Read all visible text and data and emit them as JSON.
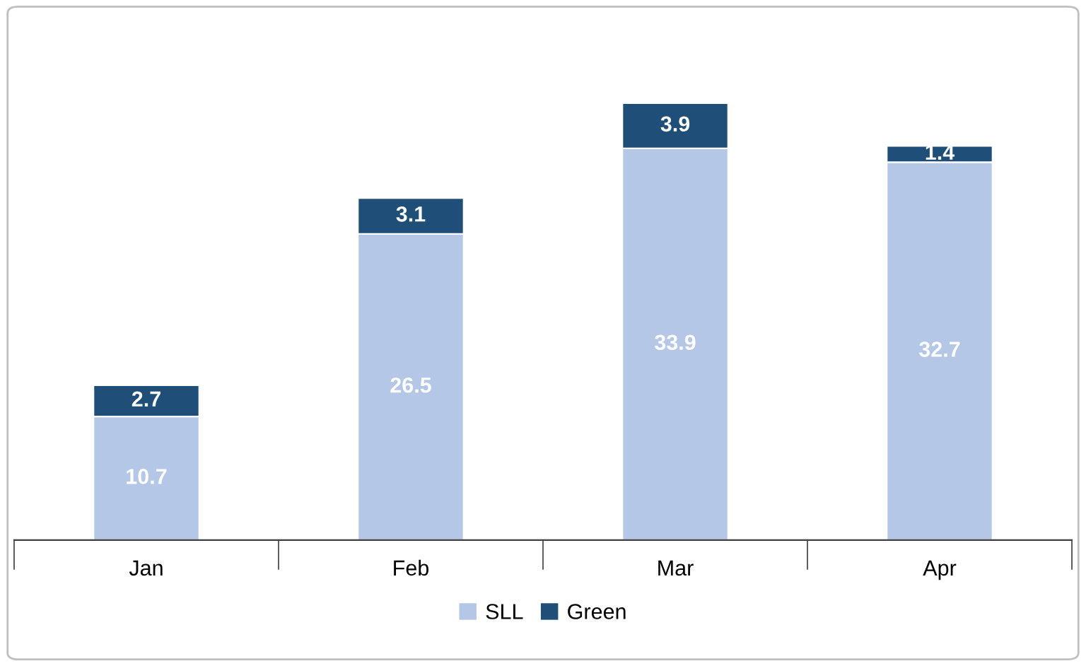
{
  "chart_data": {
    "type": "bar",
    "stacked": true,
    "categories": [
      "Jan",
      "Feb",
      "Mar",
      "Apr"
    ],
    "series": [
      {
        "name": "SLL",
        "color": "#b4c7e7",
        "values": [
          10.7,
          26.5,
          33.9,
          32.7
        ]
      },
      {
        "name": "Green",
        "color": "#1f4e79",
        "values": [
          2.7,
          3.1,
          3.9,
          1.4
        ]
      }
    ],
    "data_labels": true,
    "legend": "bottom",
    "grid": false,
    "tick_labels": "x"
  }
}
